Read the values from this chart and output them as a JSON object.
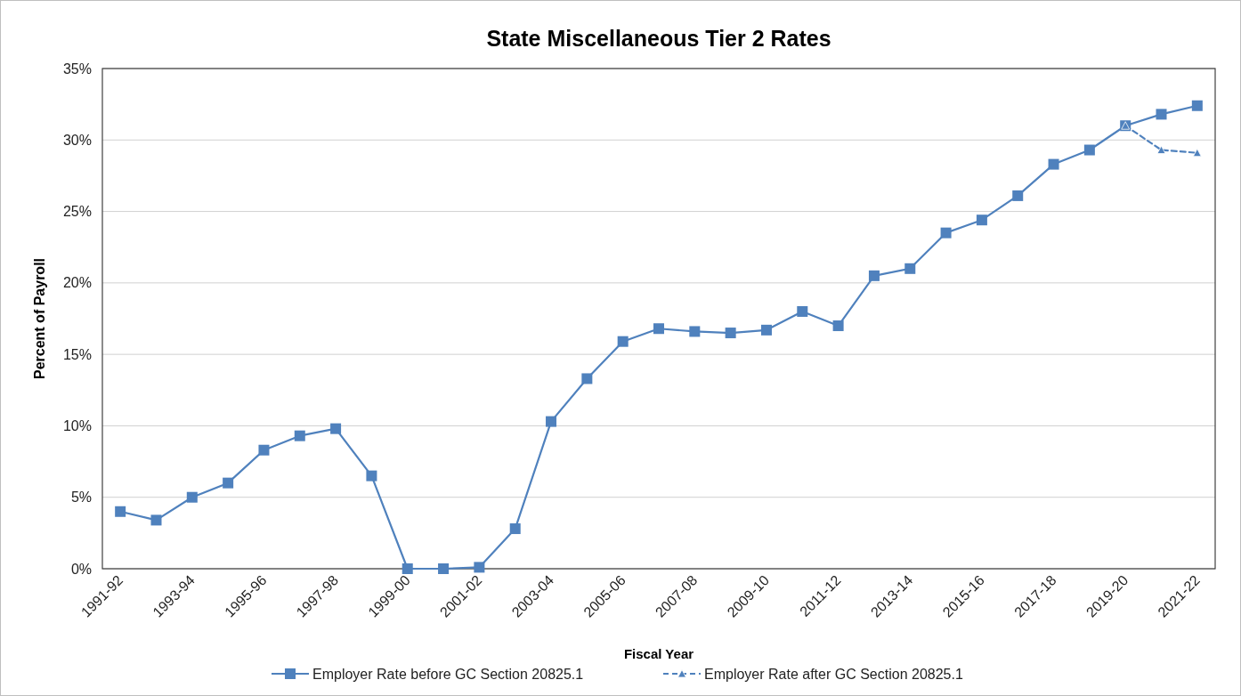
{
  "chart_data": {
    "type": "line",
    "title": "State Miscellaneous Tier 2 Rates",
    "xlabel": "Fiscal Year",
    "ylabel": "Percent of Payroll",
    "categories": [
      "1991-92",
      null,
      "1993-94",
      null,
      "1995-96",
      null,
      "1997-98",
      null,
      "1999-00",
      null,
      "2001-02",
      null,
      "2003-04",
      null,
      "2005-06",
      null,
      "2007-08",
      null,
      "2009-10",
      null,
      "2011-12",
      null,
      "2013-14",
      null,
      "2015-16",
      null,
      "2017-18",
      null,
      "2019-20",
      null,
      "2021-22"
    ],
    "series": [
      {
        "name": "Employer Rate before GC Section 20825.1",
        "color": "#4f81bd",
        "marker": "square",
        "line_style": "solid",
        "values": [
          4.0,
          3.4,
          5.0,
          6.0,
          8.3,
          9.3,
          9.8,
          6.5,
          0,
          0,
          0.1,
          2.8,
          10.3,
          13.3,
          15.9,
          16.8,
          16.6,
          16.5,
          16.7,
          18.0,
          17.0,
          20.5,
          21.0,
          23.5,
          24.4,
          26.1,
          28.3,
          29.3,
          31.0,
          31.8,
          32.4
        ]
      },
      {
        "name": "Employer Rate after GC Section 20825.1",
        "color": "#4f81bd",
        "marker": "triangle",
        "line_style": "dashed",
        "values": [
          null,
          null,
          null,
          null,
          null,
          null,
          null,
          null,
          null,
          null,
          null,
          null,
          null,
          null,
          null,
          null,
          null,
          null,
          null,
          null,
          null,
          null,
          null,
          null,
          null,
          null,
          null,
          null,
          31.0,
          29.3,
          29.1
        ]
      }
    ],
    "ylim": [
      0,
      35
    ],
    "yticks": [
      {
        "value": 0,
        "label": "0%"
      },
      {
        "value": 5,
        "label": "5%"
      },
      {
        "value": 10,
        "label": "10%"
      },
      {
        "value": 15,
        "label": "15%"
      },
      {
        "value": 20,
        "label": "20%"
      },
      {
        "value": 25,
        "label": "25%"
      },
      {
        "value": 30,
        "label": "30%"
      },
      {
        "value": 35,
        "label": "35%"
      }
    ],
    "grid": "y",
    "legend": "bottom"
  }
}
